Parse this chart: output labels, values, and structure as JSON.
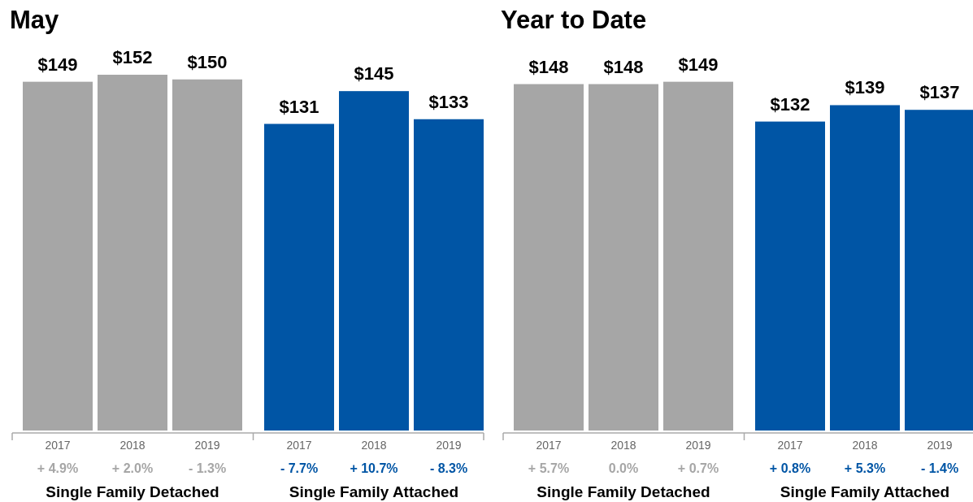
{
  "chart_data": [
    {
      "type": "bar",
      "title": "May",
      "categories": [
        "2017",
        "2018",
        "2019",
        "2017",
        "2018",
        "2019"
      ],
      "tick_labels": "x",
      "series": [
        {
          "color": "#a6a6a6",
          "values": [
            149,
            152,
            150,
            null,
            null,
            null
          ],
          "value_labels": [
            "$149",
            "$152",
            "$150",
            null,
            null,
            null
          ]
        },
        {
          "color": "#0055a5",
          "values": [
            null,
            null,
            null,
            131,
            145,
            133
          ],
          "value_labels": [
            null,
            null,
            null,
            "$131",
            "$145",
            "$133"
          ]
        }
      ],
      "annotations": [
        "+ 4.9%",
        "+ 2.0%",
        "- 1.3%",
        "- 7.7%",
        "+ 10.7%",
        "- 8.3%",
        "Single Family Detached",
        "Single Family Attached"
      ]
    },
    {
      "type": "bar",
      "title": "Year to Date",
      "categories": [
        "2017",
        "2018",
        "2019",
        "2017",
        "2018",
        "2019"
      ],
      "tick_labels": "x",
      "series": [
        {
          "color": "#a6a6a6",
          "values": [
            148,
            148,
            149,
            null,
            null,
            null
          ],
          "value_labels": [
            "$148",
            "$148",
            "$149",
            null,
            null,
            null
          ]
        },
        {
          "color": "#0055a5",
          "values": [
            null,
            null,
            null,
            132,
            139,
            137
          ],
          "value_labels": [
            null,
            null,
            null,
            "$132",
            "$139",
            "$137"
          ]
        }
      ],
      "annotations": [
        "+ 5.7%",
        "0.0%",
        "+ 0.7%",
        "+ 0.8%",
        "+ 5.3%",
        "- 1.4%",
        "Single Family Detached",
        "Single Family Attached"
      ]
    }
  ]
}
